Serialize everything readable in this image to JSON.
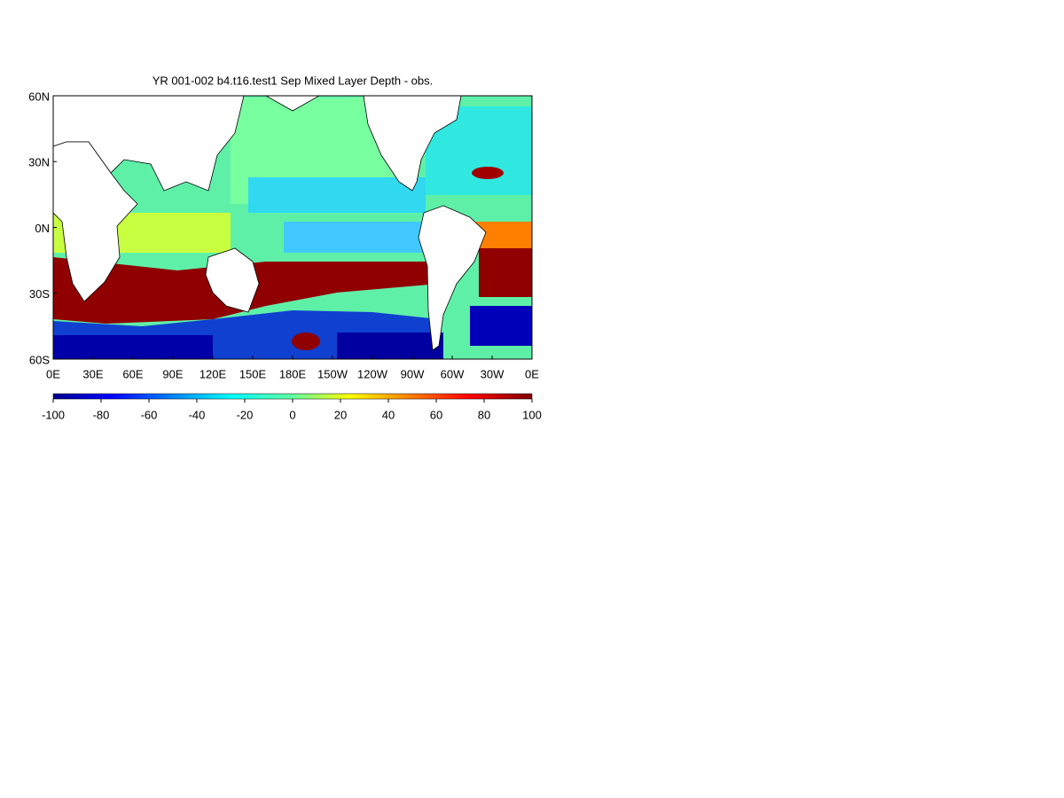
{
  "map": {
    "title": "YR 001-002 b4.t16.test1 Sep Mixed Layer Depth - obs.",
    "lon_range": [
      0,
      360
    ],
    "lat_range": [
      -60,
      60
    ],
    "lon_ticks": [
      {
        "value": 0,
        "label": "0E"
      },
      {
        "value": 30,
        "label": "30E"
      },
      {
        "value": 60,
        "label": "60E"
      },
      {
        "value": 90,
        "label": "90E"
      },
      {
        "value": 120,
        "label": "120E"
      },
      {
        "value": 150,
        "label": "150E"
      },
      {
        "value": 180,
        "label": "180E"
      },
      {
        "value": 210,
        "label": "150W"
      },
      {
        "value": 240,
        "label": "120W"
      },
      {
        "value": 270,
        "label": "90W"
      },
      {
        "value": 300,
        "label": "60W"
      },
      {
        "value": 330,
        "label": "30W"
      },
      {
        "value": 360,
        "label": "0E"
      }
    ],
    "lat_ticks": [
      {
        "value": 60,
        "label": "60N"
      },
      {
        "value": 30,
        "label": "30N"
      },
      {
        "value": 0,
        "label": "0N"
      },
      {
        "value": -30,
        "label": "30S"
      },
      {
        "value": -60,
        "label": "60S"
      }
    ],
    "colorbar": {
      "lim": [
        -100,
        100
      ],
      "ticks": [
        -100,
        -80,
        -60,
        -40,
        -20,
        0,
        20,
        40,
        60,
        80,
        100
      ]
    }
  }
}
